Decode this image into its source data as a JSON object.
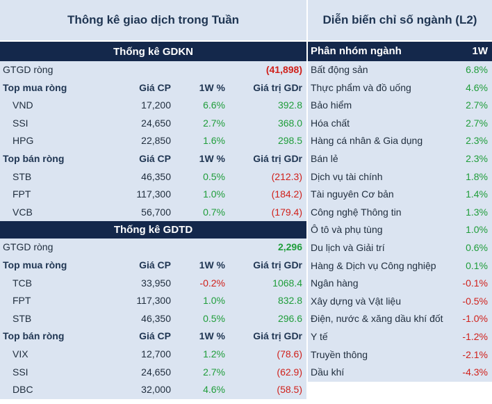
{
  "left": {
    "title": "Thông kê giao dịch trong Tuần",
    "gdkn": {
      "header": "Thống kê GDKN",
      "gtgd_label": "GTGD ròng",
      "gtgd_value": "(41,898)",
      "buy_header": {
        "name": "Top mua ròng",
        "price": "Giá CP",
        "pct": "1W %",
        "val": "Giá trị GDr"
      },
      "buy_rows": [
        {
          "name": "VND",
          "price": "17,200",
          "pct": "6.6%",
          "val": "392.8"
        },
        {
          "name": "SSI",
          "price": "24,650",
          "pct": "2.7%",
          "val": "368.0"
        },
        {
          "name": "HPG",
          "price": "22,850",
          "pct": "1.6%",
          "val": "298.5"
        }
      ],
      "sell_header": {
        "name": "Top bán ròng",
        "price": "Giá CP",
        "pct": "1W %",
        "val": "Giá trị GDr"
      },
      "sell_rows": [
        {
          "name": "STB",
          "price": "46,350",
          "pct": "0.5%",
          "val": "(212.3)"
        },
        {
          "name": "FPT",
          "price": "117,300",
          "pct": "1.0%",
          "val": "(184.2)"
        },
        {
          "name": "VCB",
          "price": "56,700",
          "pct": "0.7%",
          "val": "(179.4)"
        }
      ]
    },
    "gdtd": {
      "header": "Thống kê GDTD",
      "gtgd_label": "GTGD ròng",
      "gtgd_value": "2,296",
      "buy_header": {
        "name": "Top mua ròng",
        "price": "Giá CP",
        "pct": "1W %",
        "val": "Giá trị GDr"
      },
      "buy_rows": [
        {
          "name": "TCB",
          "price": "33,950",
          "pct": "-0.2%",
          "val": "1068.4"
        },
        {
          "name": "FPT",
          "price": "117,300",
          "pct": "1.0%",
          "val": "832.8"
        },
        {
          "name": "STB",
          "price": "46,350",
          "pct": "0.5%",
          "val": "296.6"
        }
      ],
      "sell_header": {
        "name": "Top bán ròng",
        "price": "Giá CP",
        "pct": "1W %",
        "val": "Giá trị GDr"
      },
      "sell_rows": [
        {
          "name": "VIX",
          "price": "12,700",
          "pct": "1.2%",
          "val": "(78.6)"
        },
        {
          "name": "SSI",
          "price": "24,650",
          "pct": "2.7%",
          "val": "(62.9)"
        },
        {
          "name": "DBC",
          "price": "32,000",
          "pct": "4.6%",
          "val": "(58.5)"
        }
      ]
    }
  },
  "right": {
    "title": "Diễn biến chỉ số ngành (L2)",
    "header": {
      "name": "Phân nhóm ngành",
      "val": "1W"
    },
    "rows": [
      {
        "name": "Bất động sản",
        "val": "6.8%"
      },
      {
        "name": "Thực phẩm và đồ uống",
        "val": "4.6%"
      },
      {
        "name": "Bảo hiểm",
        "val": "2.7%"
      },
      {
        "name": "Hóa chất",
        "val": "2.7%"
      },
      {
        "name": "Hàng cá nhân & Gia dụng",
        "val": "2.3%"
      },
      {
        "name": "Bán lẻ",
        "val": "2.3%"
      },
      {
        "name": "Dịch vụ tài chính",
        "val": "1.8%"
      },
      {
        "name": "Tài nguyên Cơ bản",
        "val": "1.4%"
      },
      {
        "name": "Công nghệ Thông tin",
        "val": "1.3%"
      },
      {
        "name": "Ô tô và phụ tùng",
        "val": "1.0%"
      },
      {
        "name": "Du lịch và Giải trí",
        "val": "0.6%"
      },
      {
        "name": "Hàng & Dịch vụ Công nghiệp",
        "val": "0.1%"
      },
      {
        "name": "Ngân hàng",
        "val": "-0.1%"
      },
      {
        "name": "Xây dựng và Vật liệu",
        "val": "-0.5%"
      },
      {
        "name": "Điện, nước & xăng dầu khí đốt",
        "val": "-1.0%"
      },
      {
        "name": "Y tế",
        "val": "-1.2%"
      },
      {
        "name": "Truyền thông",
        "val": "-2.1%"
      },
      {
        "name": "Dầu khí",
        "val": "-4.3%"
      }
    ]
  },
  "colors": {
    "positive": "#1f9d3a",
    "negative": "#d0201a",
    "header_bg": "#14284b",
    "row_bg": "#dbe4f1"
  }
}
